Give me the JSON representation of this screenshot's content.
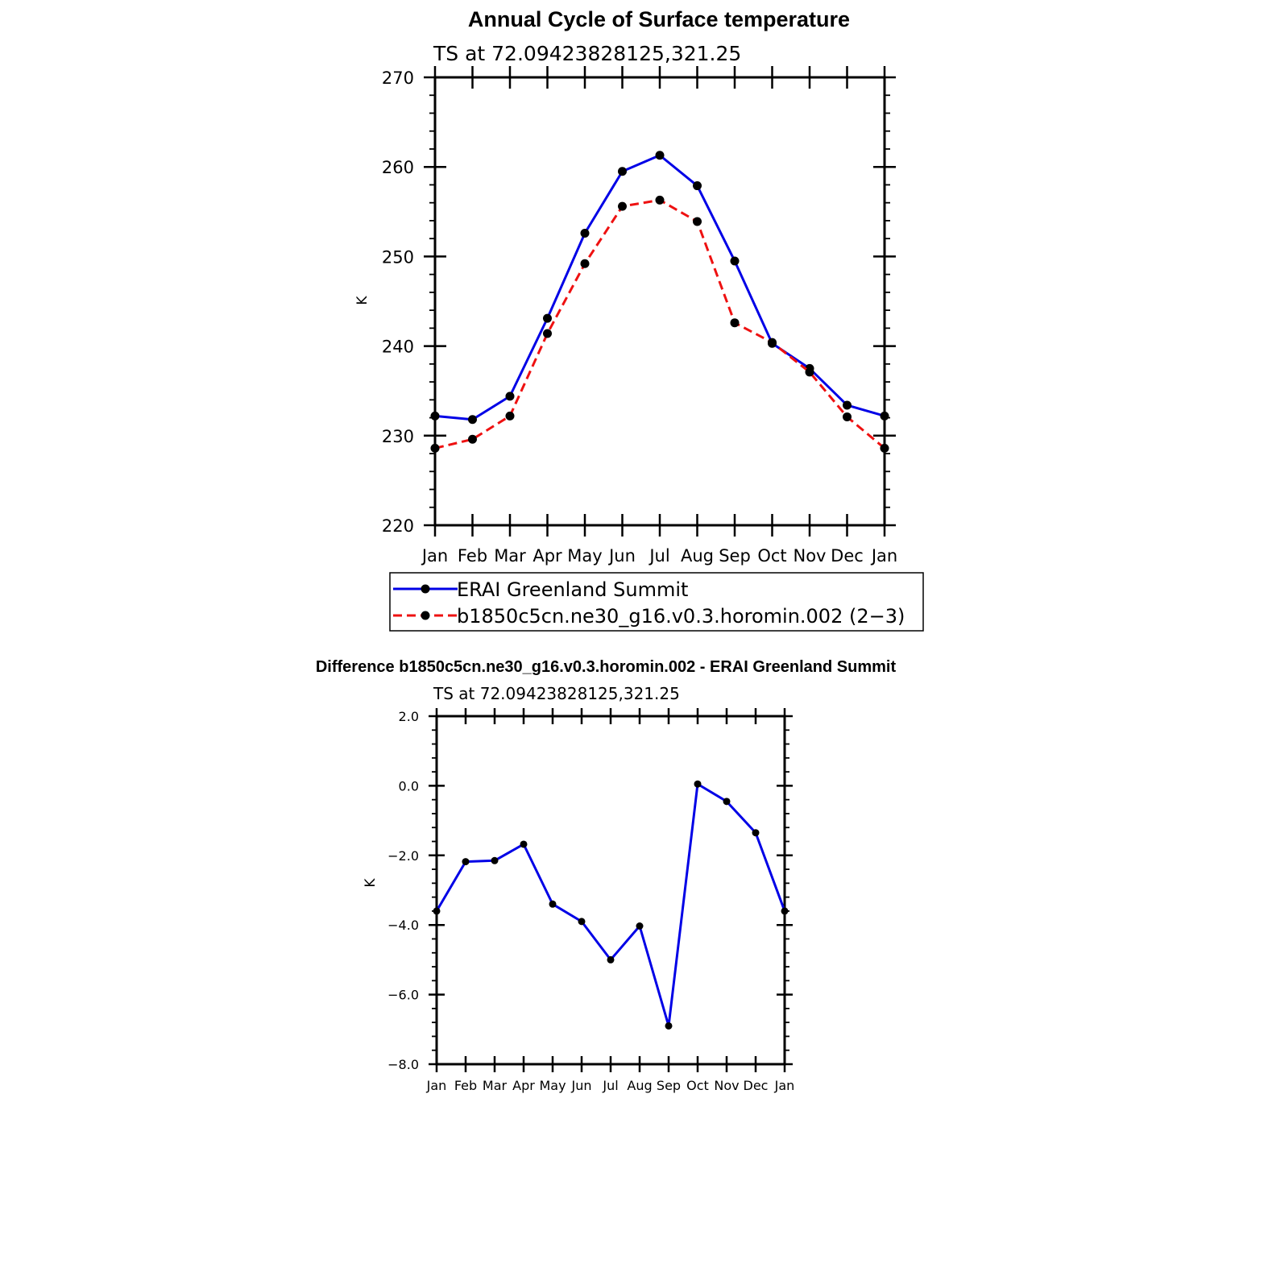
{
  "colors": {
    "series_blue": "#0000e6",
    "series_red": "#ee1111",
    "marker": "#000000",
    "axis": "#000000"
  },
  "chart_data": [
    {
      "type": "line",
      "title": "Annual Cycle of Surface temperature",
      "subtitle": "TS at 72.09423828125,321.25",
      "xlabel": "",
      "ylabel": "K",
      "categories": [
        "Jan",
        "Feb",
        "Mar",
        "Apr",
        "May",
        "Jun",
        "Jul",
        "Aug",
        "Sep",
        "Oct",
        "Nov",
        "Dec",
        "Jan"
      ],
      "ylim": [
        220,
        270
      ],
      "yticks": [
        "220",
        "230",
        "240",
        "250",
        "260",
        "270"
      ],
      "grid": false,
      "legend_position": "bottom",
      "series": [
        {
          "name": "ERAI Greenland Summit",
          "style": "solid",
          "values": [
            232.2,
            231.8,
            234.4,
            243.1,
            252.6,
            259.5,
            261.3,
            257.9,
            249.5,
            240.3,
            237.5,
            233.4,
            232.2
          ]
        },
        {
          "name": "b1850c5cn.ne30_g16.v0.3.horomin.002 (2−3)",
          "style": "dashed",
          "values": [
            228.6,
            229.6,
            232.2,
            241.4,
            249.2,
            255.6,
            256.3,
            253.9,
            242.6,
            240.4,
            237.1,
            232.1,
            228.6
          ]
        }
      ]
    },
    {
      "type": "line",
      "title": "Difference b1850c5cn.ne30_g16.v0.3.horomin.002 - ERAI Greenland Summit",
      "subtitle": "TS at 72.09423828125,321.25",
      "xlabel": "",
      "ylabel": "K",
      "categories": [
        "Jan",
        "Feb",
        "Mar",
        "Apr",
        "May",
        "Jun",
        "Jul",
        "Aug",
        "Sep",
        "Oct",
        "Nov",
        "Dec",
        "Jan"
      ],
      "ylim": [
        -8,
        2
      ],
      "yticks": [
        "−8.0",
        "−6.0",
        "−4.0",
        "−2.0",
        "0.0",
        "2.0"
      ],
      "grid": false,
      "series": [
        {
          "name": "Difference",
          "style": "solid",
          "values": [
            -3.6,
            -2.18,
            -2.15,
            -1.68,
            -3.4,
            -3.9,
            -5.0,
            -4.03,
            -6.9,
            0.05,
            -0.45,
            -1.35,
            -3.6
          ]
        }
      ]
    }
  ]
}
